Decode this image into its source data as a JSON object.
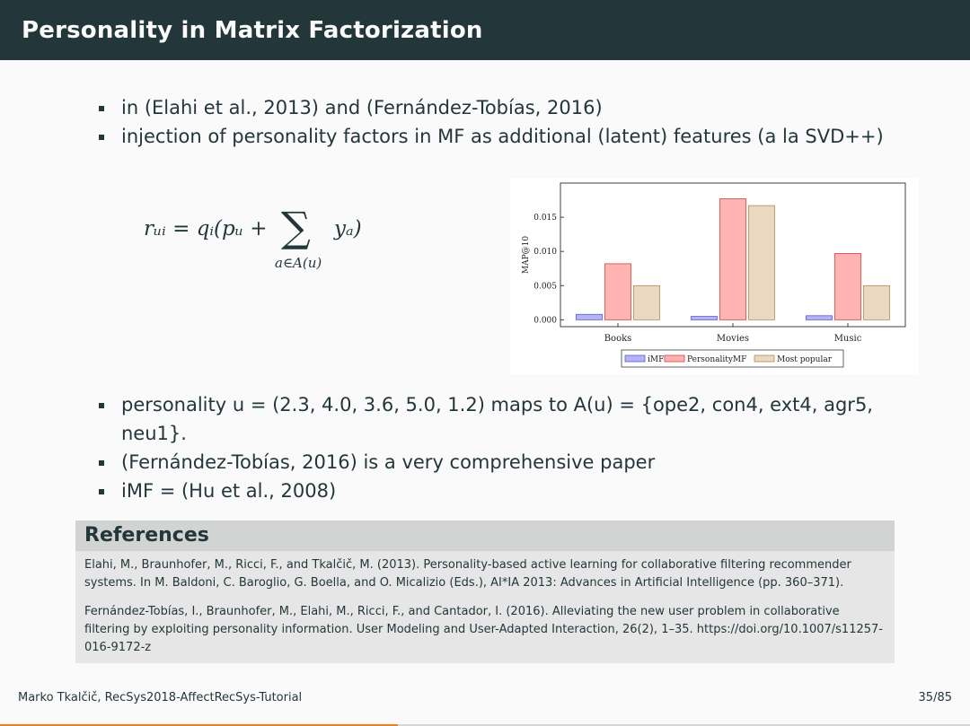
{
  "slide": {
    "title": "Personality in Matrix Factorization",
    "top_bullets": [
      "in (Elahi et al., 2013) and (Fernández-Tobías, 2016)",
      "injection of personality factors in MF as additional (latent) features (a la SVD++)"
    ],
    "formula": {
      "lhs": "rᵤᵢ = qᵢ(pᵤ +",
      "sigma": "∑",
      "summand": "yₐ)",
      "subscript": "a∈A(u)"
    },
    "bottom_bullets": [
      "personality u = (2.3, 4.0, 3.6, 5.0, 1.2) maps to A(u) = {ope2, con4, ext4, agr5, neu1}.",
      "(Fernández-Tobías, 2016) is a very comprehensive paper",
      "iMF = (Hu et al., 2008)"
    ],
    "references": {
      "heading": "References",
      "items": [
        "Elahi, M., Braunhofer, M., Ricci, F., and Tkalčič, M. (2013). Personality-based active learning for collaborative filtering recommender systems. In M. Baldoni, C. Baroglio, G. Boella, and O. Micalizio (Eds.), AI*IA 2013: Advances in Artificial Intelligence (pp. 360–371).",
        "Fernández-Tobías, I., Braunhofer, M., Elahi, M., Ricci, F., and Cantador, I. (2016). Alleviating the new user problem in collaborative filtering by exploiting personality information. User Modeling and User-Adapted Interaction, 26(2), 1–35. https://doi.org/10.1007/s11257-016-9172-z"
      ]
    },
    "footer": {
      "left": "Marko Tkalčič, RecSys2018-AffectRecSys-Tutorial",
      "page": "35/85"
    },
    "progress": 0.41
  },
  "chart_data": {
    "type": "bar",
    "categories": [
      "Books",
      "Movies",
      "Music"
    ],
    "series": [
      {
        "name": "iMF",
        "values": [
          0.0008,
          0.0005,
          0.0006
        ],
        "color": "#b3b3f5",
        "stroke": "#5a5acd"
      },
      {
        "name": "PersonalityMF",
        "values": [
          0.0082,
          0.0177,
          0.0097
        ],
        "color": "#ffb3b3",
        "stroke": "#d94040"
      },
      {
        "name": "Most popular",
        "values": [
          0.005,
          0.0167,
          0.005
        ],
        "color": "#ead9c0",
        "stroke": "#b08a5a"
      }
    ],
    "title": "",
    "xlabel": "",
    "ylabel": "MAP@10",
    "ylim": [
      -0.001,
      0.02
    ],
    "yticks": [
      "0.000",
      "0.005",
      "0.010",
      "0.015"
    ],
    "ytick_values": [
      0,
      0.005,
      0.01,
      0.015
    ],
    "legend_position": "bottom"
  }
}
